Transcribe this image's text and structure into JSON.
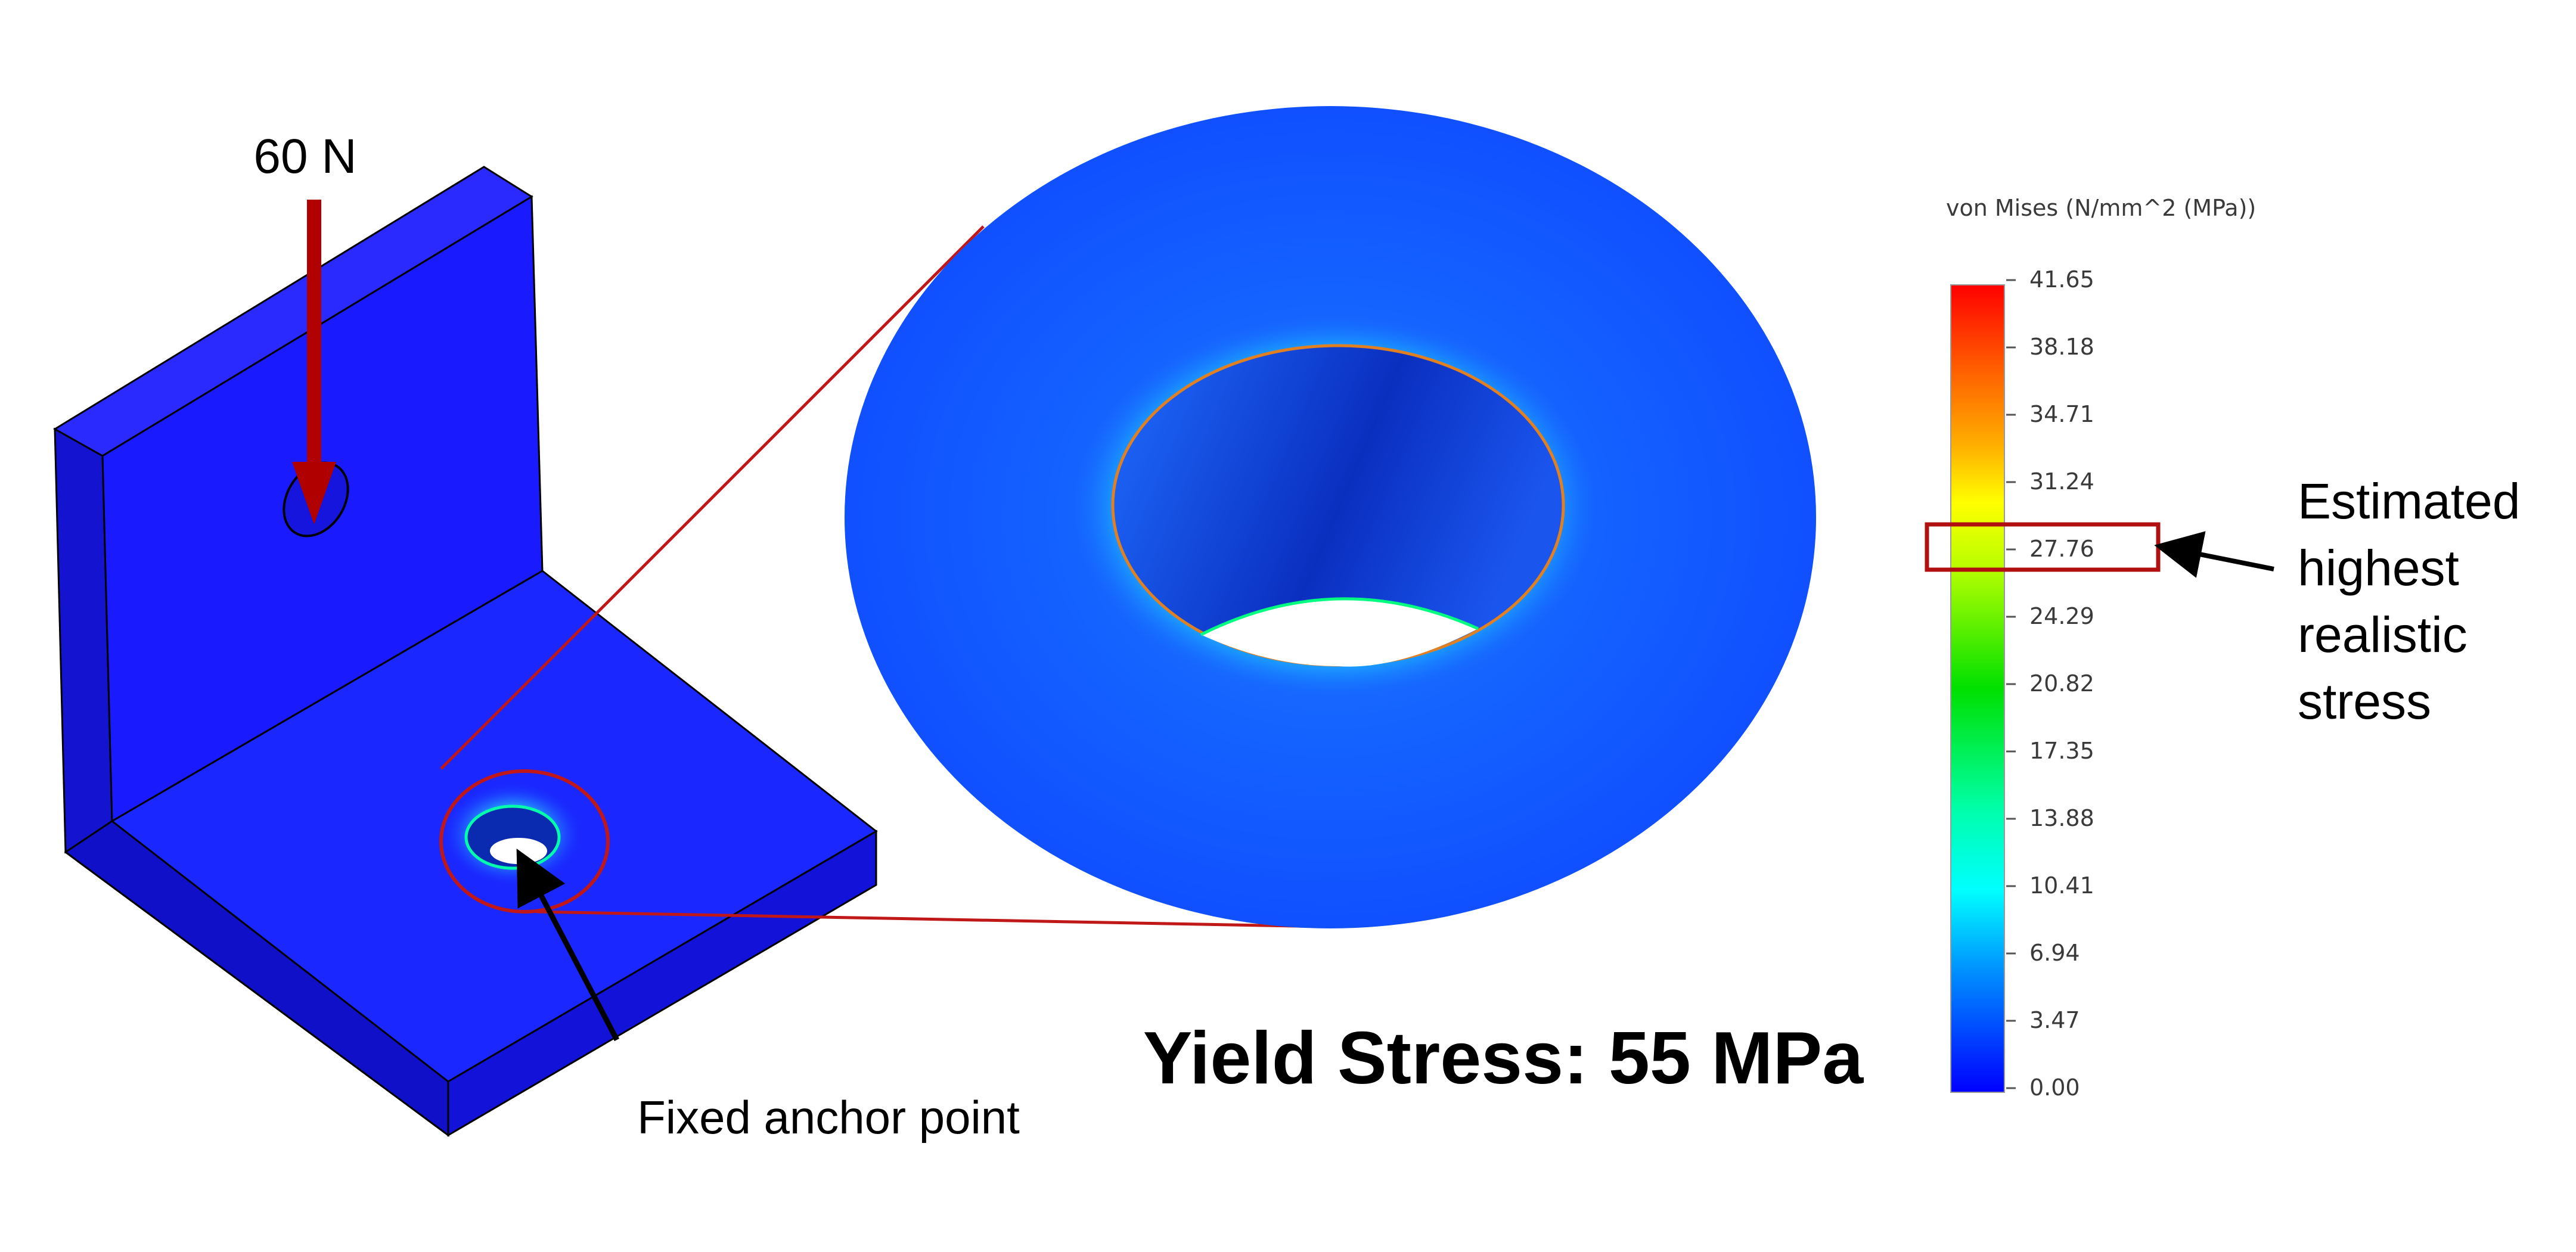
{
  "load": {
    "label": "60 N"
  },
  "anchor": {
    "label": "Fixed anchor point"
  },
  "yield": {
    "label": "Yield Stress: 55 MPa"
  },
  "legend": {
    "title": "von Mises (N/mm^2 (MPa))",
    "ticks": [
      "41.65",
      "38.18",
      "34.71",
      "31.24",
      "27.76",
      "24.29",
      "20.82",
      "17.35",
      "13.88",
      "10.41",
      "6.94",
      "3.47",
      "0.00"
    ],
    "highlighted_tick": "27.76"
  },
  "callout": {
    "lines": [
      "Estimated",
      "highest",
      "realistic",
      "stress"
    ]
  },
  "colors": {
    "part_blue": "#1a1aff",
    "arrow_red": "#b00000",
    "zoom_red": "#c01818"
  }
}
